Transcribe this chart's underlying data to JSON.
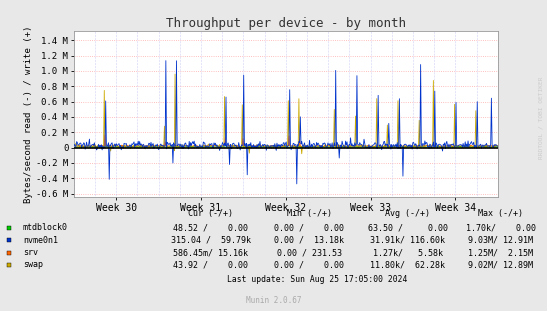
{
  "title": "Throughput per device - by month",
  "ylabel": "Bytes/second read (-) / write (+)",
  "xlabel_ticks": [
    "Week 30",
    "Week 31",
    "Week 32",
    "Week 33",
    "Week 34"
  ],
  "ylim": [
    -650000.0,
    1520000.0
  ],
  "yticks": [
    -600000.0,
    -400000.0,
    -200000.0,
    0.0,
    200000.0,
    400000.0,
    600000.0,
    800000.0,
    1000000.0,
    1200000.0,
    1400000.0
  ],
  "ytick_labels": [
    "-0.6 M",
    "-0.4 M",
    "-0.2 M",
    "0",
    "0.2 M",
    "0.4 M",
    "0.6 M",
    "0.8 M",
    "1.0 M",
    "1.2 M",
    "1.4 M"
  ],
  "bg_color": "#e8e8e8",
  "plot_bg_color": "#ffffff",
  "grid_color_h": "#ffaaaa",
  "grid_color_v": "#aaaaee",
  "colors": {
    "mtdblock0": "#00cc00",
    "nvme0n1": "#0033cc",
    "srv": "#ff6600",
    "swap": "#ccaa00"
  },
  "stats": [
    {
      "name": "mtdblock0",
      "color": "#00cc00",
      "cur": "48.52 /    0.00",
      "min": "0.00 /    0.00",
      "avg": "63.50 /     0.00",
      "max": "1.70k/    0.00"
    },
    {
      "name": "nvme0n1",
      "color": "#0033cc",
      "cur": "315.04 /  59.79k",
      "min": "0.00 /  13.18k",
      "avg": "31.91k/ 116.60k",
      "max": "9.03M/ 12.91M"
    },
    {
      "name": "srv",
      "color": "#ff6600",
      "cur": "586.45m/ 15.16k",
      "min": "0.00 / 231.53",
      "avg": "1.27k/   5.58k",
      "max": "1.25M/  2.15M"
    },
    {
      "name": "swap",
      "color": "#ccaa00",
      "cur": "43.92 /    0.00",
      "min": "0.00 /    0.00",
      "avg": "11.80k/  62.28k",
      "max": "9.02M/ 12.89M"
    }
  ],
  "footer": "Last update: Sun Aug 25 17:05:00 2024",
  "muninver": "Munin 2.0.67",
  "watermark": "RRDTOOL / TOBI OETIKER",
  "n_points": 600
}
